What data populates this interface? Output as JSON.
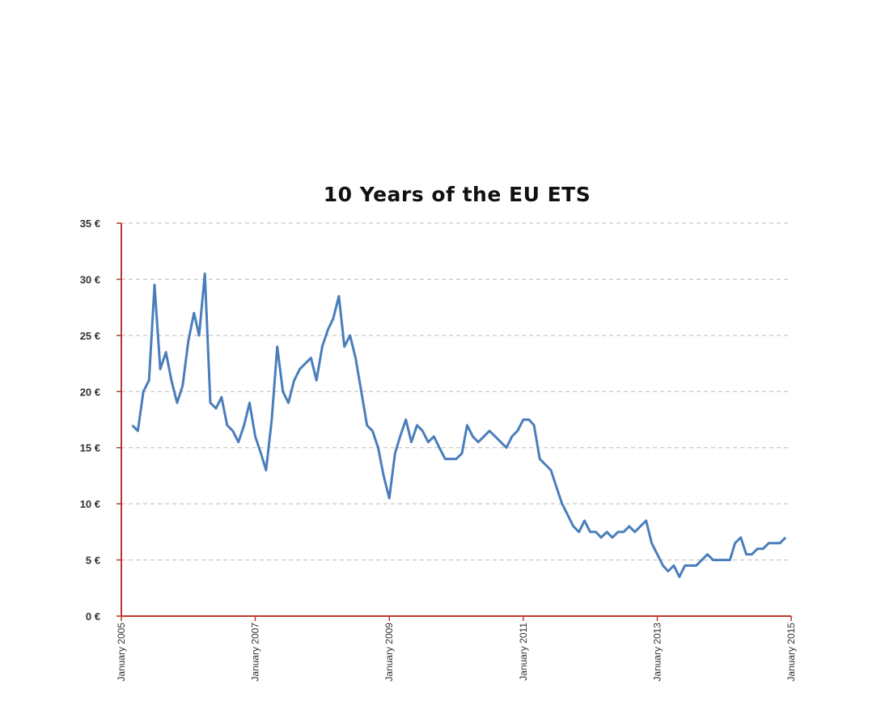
{
  "chart_data": {
    "type": "line",
    "title": "10 Years of the EU ETS",
    "xlabel": "",
    "ylabel": "",
    "y_tick_labels": [
      "0 €",
      "5 €",
      "10 €",
      "15 €",
      "20 €",
      "25 €",
      "30 €",
      "35 €"
    ],
    "y_tick_values": [
      0,
      5,
      10,
      15,
      20,
      25,
      30,
      35
    ],
    "x_tick_labels": [
      "January 2005",
      "January 2007",
      "January 2009",
      "January 2011",
      "January 2013",
      "January 2015"
    ],
    "x_tick_values": [
      "2005-01",
      "2007-01",
      "2009-01",
      "2011-01",
      "2013-01",
      "2015-01"
    ],
    "xlim": [
      "2005-01",
      "2015-01"
    ],
    "ylim": [
      0,
      35
    ],
    "grid": "horizontal dashed",
    "colors": {
      "line": "#4a7ebb",
      "y_axis": "#b03a2e",
      "x_axis": "#c0392b",
      "grid": "#bbbbbb"
    },
    "series": [
      {
        "x": [
          "2005-03",
          "2005-04",
          "2005-05",
          "2005-06",
          "2005-07",
          "2005-08",
          "2005-09",
          "2005-10",
          "2005-11",
          "2005-12",
          "2006-01",
          "2006-02",
          "2006-03",
          "2006-04",
          "2006-05",
          "2006-06",
          "2006-07",
          "2006-08",
          "2006-09",
          "2006-10",
          "2006-11",
          "2006-12",
          "2007-01",
          "2007-02",
          "2007-03",
          "2007-04",
          "2007-05",
          "2007-06",
          "2007-07",
          "2007-08",
          "2007-09",
          "2007-10",
          "2007-11",
          "2007-12",
          "2008-01",
          "2008-02",
          "2008-03",
          "2008-04",
          "2008-05",
          "2008-06",
          "2008-07",
          "2008-08",
          "2008-09",
          "2008-10",
          "2008-11",
          "2008-12",
          "2009-01",
          "2009-02",
          "2009-03",
          "2009-04",
          "2009-05",
          "2009-06",
          "2009-07",
          "2009-08",
          "2009-09",
          "2009-10",
          "2009-11",
          "2009-12",
          "2010-01",
          "2010-02",
          "2010-03",
          "2010-04",
          "2010-05",
          "2010-06",
          "2010-07",
          "2010-08",
          "2010-09",
          "2010-10",
          "2010-11",
          "2010-12",
          "2011-01",
          "2011-02",
          "2011-03",
          "2011-04",
          "2011-05",
          "2011-06",
          "2011-07",
          "2011-08",
          "2011-09",
          "2011-10",
          "2011-11",
          "2011-12",
          "2012-01",
          "2012-02",
          "2012-03",
          "2012-04",
          "2012-05",
          "2012-06",
          "2012-07",
          "2012-08",
          "2012-09",
          "2012-10",
          "2012-11",
          "2012-12",
          "2013-01",
          "2013-02",
          "2013-03",
          "2013-04",
          "2013-05",
          "2013-06",
          "2013-07",
          "2013-08",
          "2013-09",
          "2013-10",
          "2013-11",
          "2013-12",
          "2014-01",
          "2014-02",
          "2014-03",
          "2014-04",
          "2014-05",
          "2014-06",
          "2014-07",
          "2014-08",
          "2014-09",
          "2014-10",
          "2014-11",
          "2014-12"
        ],
        "values": [
          17.0,
          16.5,
          20.0,
          21.0,
          29.5,
          22.0,
          23.5,
          21.0,
          19.0,
          20.5,
          24.5,
          27.0,
          25.0,
          30.5,
          19.0,
          18.5,
          19.5,
          17.0,
          16.5,
          15.5,
          17.0,
          19.0,
          16.0,
          14.5,
          13.0,
          17.5,
          24.0,
          20.0,
          19.0,
          21.0,
          22.0,
          22.5,
          23.0,
          21.0,
          24.0,
          25.5,
          26.5,
          28.5,
          24.0,
          25.0,
          23.0,
          20.0,
          17.0,
          16.5,
          15.0,
          12.5,
          10.5,
          14.5,
          16.0,
          17.5,
          15.5,
          17.0,
          16.5,
          15.5,
          16.0,
          15.0,
          14.0,
          14.0,
          14.0,
          14.5,
          17.0,
          16.0,
          15.5,
          16.0,
          16.5,
          16.0,
          15.5,
          15.0,
          16.0,
          16.5,
          17.5,
          17.5,
          17.0,
          14.0,
          13.5,
          13.0,
          11.5,
          10.0,
          9.0,
          8.0,
          7.5,
          8.5,
          7.5,
          7.5,
          7.0,
          7.5,
          7.0,
          7.5,
          7.5,
          8.0,
          7.5,
          8.0,
          8.5,
          6.5,
          5.5,
          4.5,
          4.0,
          4.5,
          3.5,
          4.5,
          4.5,
          4.5,
          5.0,
          5.5,
          5.0,
          5.0,
          5.0,
          5.0,
          6.5,
          7.0,
          5.5,
          5.5,
          6.0,
          6.0,
          6.5,
          6.5,
          6.5,
          7.0
        ]
      }
    ]
  }
}
